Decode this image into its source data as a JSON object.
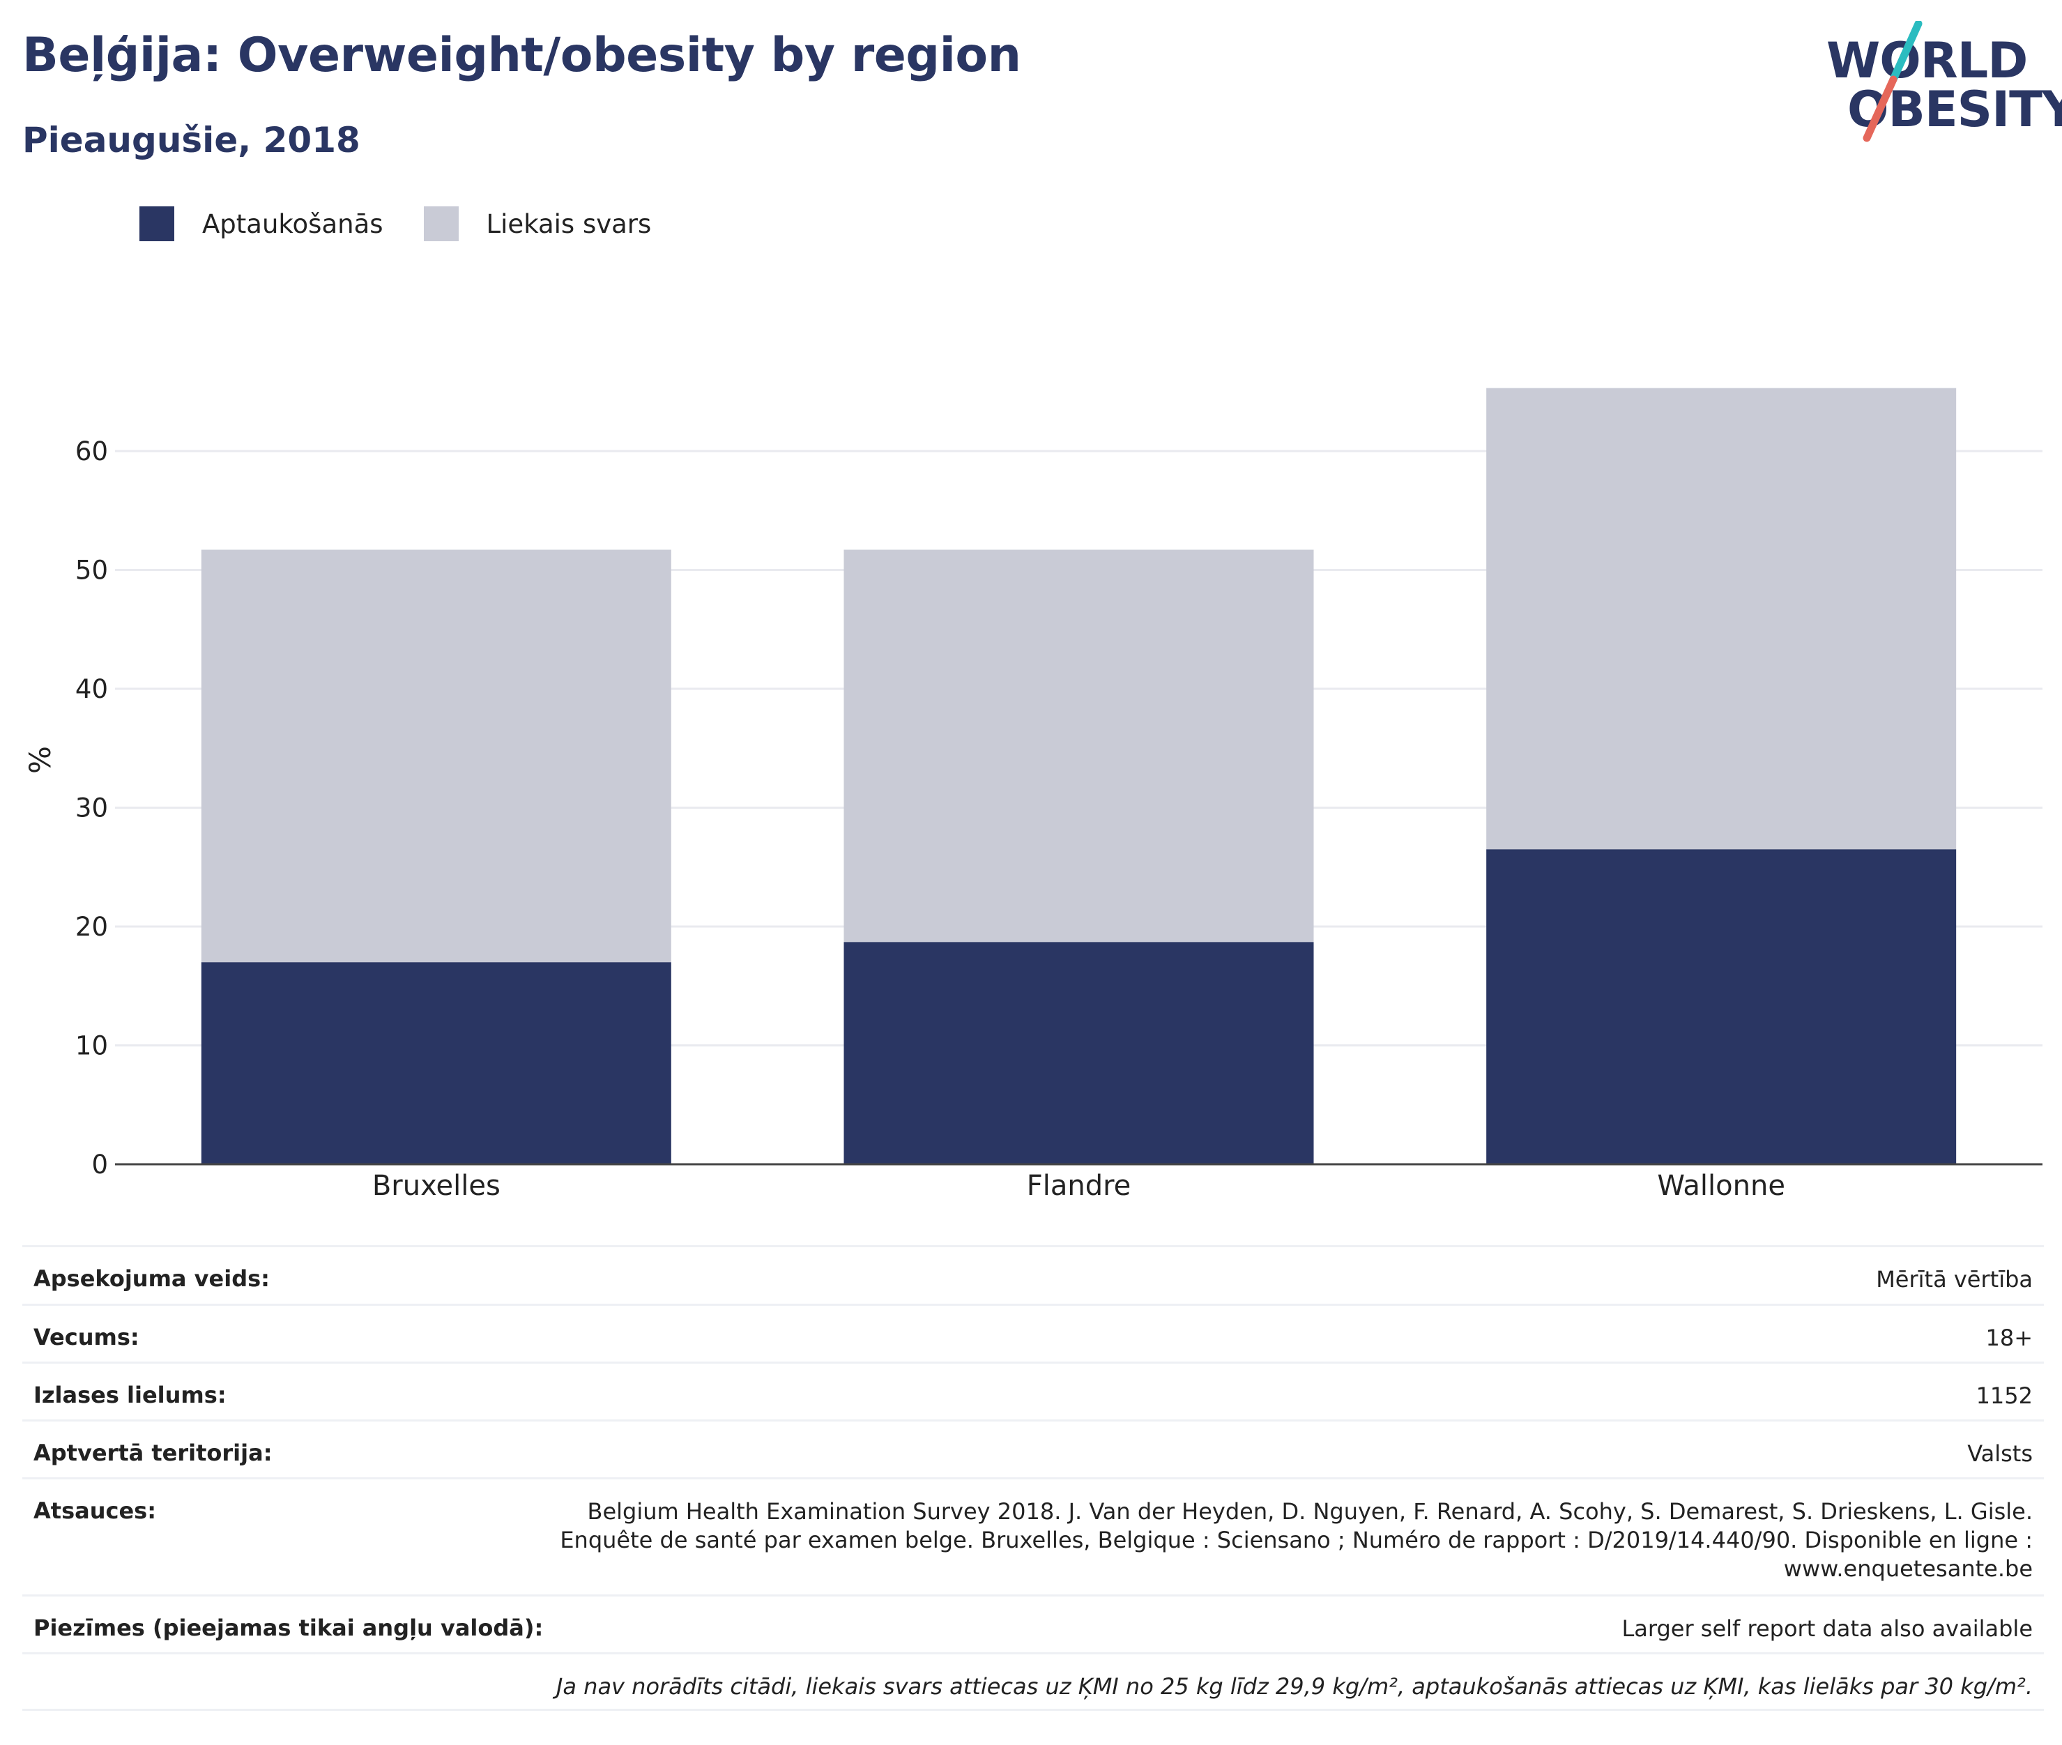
{
  "header": {
    "title": "Beļģija: Overweight/obesity by region",
    "subtitle": "Pieaugušie, 2018",
    "logo_line1": "WORLD",
    "logo_line2": "OBESITY"
  },
  "colors": {
    "obesity": "#2a3663",
    "overweight": "#c9cbd6",
    "title": "#2a3663",
    "logo_slash_top": "#2bbcc0",
    "logo_slash_bottom": "#e5675a"
  },
  "legend": [
    {
      "label": "Aptaukošanās",
      "color": "#2a3663"
    },
    {
      "label": "Liekais svars",
      "color": "#c9cbd6"
    }
  ],
  "chart_data": {
    "type": "bar",
    "stacked": true,
    "categories": [
      "Bruxelles",
      "Flandre",
      "Wallonne"
    ],
    "series": [
      {
        "name": "Aptaukošanās",
        "values": [
          17.0,
          18.7,
          26.5
        ]
      },
      {
        "name": "Liekais svars",
        "values": [
          34.7,
          33.0,
          38.8
        ]
      }
    ],
    "ylabel": "%",
    "ylim": [
      0,
      68
    ],
    "yticks": [
      0,
      10,
      20,
      30,
      40,
      50,
      60
    ],
    "grid": true
  },
  "info": {
    "rows": [
      {
        "key": "Apsekojuma veids:",
        "value": "Mērītā vērtība"
      },
      {
        "key": "Vecums:",
        "value": "18+"
      },
      {
        "key": "Izlases lielums:",
        "value": "1152"
      },
      {
        "key": "Aptvertā teritorija:",
        "value": "Valsts"
      },
      {
        "key": "Atsauces:",
        "value_lines": [
          "Belgium Health Examination Survey 2018. J. Van der Heyden, D. Nguyen, F. Renard, A. Scohy, S. Demarest, S. Drieskens, L. Gisle.",
          "Enquête de santé par examen belge. Bruxelles, Belgique : Sciensano ; Numéro de rapport : D/2019/14.440/90. Disponible en ligne :",
          "www.enquetesante.be"
        ]
      },
      {
        "key": "Piezīmes (pieejamas tikai angļu valodā):",
        "value": "Larger self report data also available"
      }
    ],
    "footnote": "Ja nav norādīts citādi, liekais svars attiecas uz ĶMI no 25 kg līdz 29,9 kg/m², aptaukošanās attiecas uz ĶMI, kas lielāks par 30 kg/m²."
  }
}
